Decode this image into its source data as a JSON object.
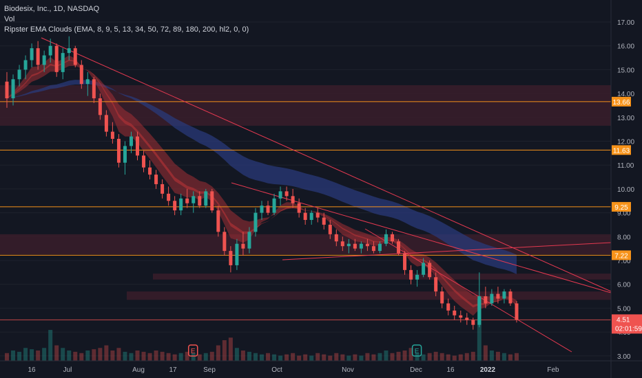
{
  "legend": {
    "title": "Biodesix, Inc., 1D, NASDAQ",
    "vol": "Vol",
    "indicator": "Ripster EMA Clouds (EMA, 8, 9, 5, 13, 34, 50, 72, 89, 180, 200, hl2, 0, 0)"
  },
  "colors": {
    "background": "#131722",
    "up": "#26a69a",
    "down": "#ef5350",
    "level_line": "#f7931a",
    "trend_line": "#e53950",
    "zone": "#3a1d2a",
    "cloud_fast": "#a33035",
    "cloud_slow": "#2a3a7a"
  },
  "chart_data": {
    "type": "candlestick",
    "y_axis": {
      "ticks": [
        "17.00",
        "16.00",
        "15.00",
        "14.00",
        "13.00",
        "12.00",
        "11.00",
        "10.00",
        "9.00",
        "8.00",
        "7.00",
        "6.00",
        "5.00",
        "4.00",
        "3.00"
      ],
      "range": [
        2.8,
        17.6
      ]
    },
    "x_axis": {
      "ticks": [
        {
          "label": "16",
          "bold": false
        },
        {
          "label": "Jul",
          "bold": false
        },
        {
          "label": "Aug",
          "bold": false
        },
        {
          "label": "17",
          "bold": false
        },
        {
          "label": "Sep",
          "bold": false
        },
        {
          "label": "Oct",
          "bold": false
        },
        {
          "label": "Nov",
          "bold": false
        },
        {
          "label": "Dec",
          "bold": false
        },
        {
          "label": "16",
          "bold": false
        },
        {
          "label": "2022",
          "bold": true
        },
        {
          "label": "Feb",
          "bold": false
        }
      ]
    },
    "horizontal_levels": [
      {
        "value": 13.66,
        "label": "13.66"
      },
      {
        "value": 11.63,
        "label": "11.63"
      },
      {
        "value": 9.25,
        "label": "9.25"
      },
      {
        "value": 7.22,
        "label": "7.22"
      }
    ],
    "zones": [
      {
        "from": 12.65,
        "to": 14.35
      },
      {
        "from": 7.25,
        "to": 8.1
      },
      {
        "from": 6.2,
        "to": 6.45
      },
      {
        "from": 5.35,
        "to": 5.7
      }
    ],
    "last_price": {
      "value": 4.51,
      "label": "4.51",
      "countdown": "02:01:59"
    },
    "support_line_value": 4.51,
    "candles": [
      [
        14.5,
        14.9,
        13.4,
        13.8
      ],
      [
        13.8,
        14.8,
        13.5,
        14.6
      ],
      [
        14.6,
        15.2,
        14.3,
        15.0
      ],
      [
        15.0,
        15.6,
        14.6,
        15.4
      ],
      [
        15.4,
        16.1,
        15.1,
        15.9
      ],
      [
        15.9,
        16.2,
        15.0,
        15.2
      ],
      [
        15.2,
        15.8,
        14.9,
        15.6
      ],
      [
        15.6,
        16.3,
        15.3,
        16.0
      ],
      [
        16.0,
        16.1,
        14.7,
        14.9
      ],
      [
        14.9,
        15.9,
        14.6,
        15.7
      ],
      [
        15.7,
        16.4,
        15.4,
        15.9
      ],
      [
        15.9,
        16.0,
        15.1,
        15.2
      ],
      [
        15.2,
        15.4,
        14.2,
        14.4
      ],
      [
        14.4,
        14.9,
        13.9,
        14.6
      ],
      [
        14.6,
        14.7,
        13.6,
        13.8
      ],
      [
        13.8,
        14.0,
        12.9,
        13.1
      ],
      [
        13.1,
        13.3,
        12.2,
        12.4
      ],
      [
        12.4,
        12.8,
        11.9,
        12.1
      ],
      [
        12.1,
        12.3,
        10.9,
        11.1
      ],
      [
        11.1,
        12.0,
        10.6,
        11.8
      ],
      [
        11.8,
        12.4,
        11.5,
        12.2
      ],
      [
        12.2,
        12.4,
        11.2,
        11.4
      ],
      [
        11.4,
        11.6,
        10.7,
        10.9
      ],
      [
        10.9,
        11.2,
        10.4,
        10.6
      ],
      [
        10.6,
        10.8,
        10.0,
        10.2
      ],
      [
        10.2,
        10.4,
        9.6,
        9.8
      ],
      [
        9.8,
        10.1,
        9.3,
        9.5
      ],
      [
        9.5,
        9.7,
        8.9,
        9.1
      ],
      [
        9.1,
        9.8,
        8.9,
        9.6
      ],
      [
        9.6,
        10.0,
        9.2,
        9.4
      ],
      [
        9.4,
        9.9,
        9.0,
        9.7
      ],
      [
        9.7,
        9.9,
        9.2,
        9.3
      ],
      [
        9.3,
        10.0,
        9.2,
        9.9
      ],
      [
        9.9,
        10.0,
        9.0,
        9.1
      ],
      [
        9.1,
        9.3,
        8.0,
        8.2
      ],
      [
        8.2,
        8.4,
        7.2,
        7.4
      ],
      [
        7.4,
        7.6,
        6.5,
        6.8
      ],
      [
        6.8,
        7.9,
        6.6,
        7.7
      ],
      [
        7.7,
        8.2,
        7.2,
        7.5
      ],
      [
        7.5,
        8.4,
        7.3,
        8.2
      ],
      [
        8.2,
        9.2,
        8.0,
        9.0
      ],
      [
        9.0,
        9.5,
        8.7,
        9.3
      ],
      [
        9.3,
        9.5,
        8.9,
        9.0
      ],
      [
        9.0,
        9.8,
        8.9,
        9.6
      ],
      [
        9.6,
        10.1,
        9.3,
        9.9
      ],
      [
        9.9,
        10.1,
        9.5,
        9.7
      ],
      [
        9.7,
        10.0,
        9.2,
        9.4
      ],
      [
        9.4,
        9.6,
        8.8,
        9.0
      ],
      [
        9.0,
        9.2,
        8.5,
        8.7
      ],
      [
        8.7,
        9.1,
        8.5,
        9.0
      ],
      [
        9.0,
        9.2,
        8.6,
        8.8
      ],
      [
        8.8,
        9.0,
        8.3,
        8.5
      ],
      [
        8.5,
        8.7,
        7.9,
        8.1
      ],
      [
        8.1,
        8.3,
        7.6,
        7.8
      ],
      [
        7.8,
        8.0,
        7.4,
        7.6
      ],
      [
        7.6,
        7.9,
        7.3,
        7.7
      ],
      [
        7.7,
        7.9,
        7.4,
        7.5
      ],
      [
        7.5,
        7.8,
        7.3,
        7.7
      ],
      [
        7.7,
        7.9,
        7.4,
        7.6
      ],
      [
        7.6,
        7.8,
        7.3,
        7.4
      ],
      [
        7.4,
        7.8,
        7.3,
        7.7
      ],
      [
        7.7,
        8.3,
        7.6,
        8.1
      ],
      [
        8.1,
        8.2,
        7.7,
        7.8
      ],
      [
        7.8,
        7.9,
        7.2,
        7.3
      ],
      [
        7.3,
        7.4,
        6.4,
        6.6
      ],
      [
        6.6,
        6.8,
        6.0,
        6.2
      ],
      [
        6.2,
        6.6,
        5.9,
        6.4
      ],
      [
        6.4,
        7.1,
        6.3,
        6.9
      ],
      [
        6.9,
        7.0,
        6.2,
        6.3
      ],
      [
        6.3,
        6.5,
        5.5,
        5.7
      ],
      [
        5.7,
        5.9,
        5.0,
        5.2
      ],
      [
        5.2,
        5.4,
        4.7,
        4.9
      ],
      [
        4.9,
        5.1,
        4.5,
        4.7
      ],
      [
        4.7,
        4.9,
        4.4,
        4.6
      ],
      [
        4.6,
        4.8,
        4.3,
        4.5
      ],
      [
        4.5,
        4.6,
        4.1,
        4.3
      ],
      [
        4.3,
        6.5,
        4.2,
        5.5
      ],
      [
        5.5,
        5.9,
        5.0,
        5.2
      ],
      [
        5.2,
        5.8,
        5.1,
        5.6
      ],
      [
        5.6,
        5.9,
        5.2,
        5.4
      ],
      [
        5.4,
        5.8,
        5.2,
        5.7
      ],
      [
        5.7,
        5.8,
        5.1,
        5.2
      ],
      [
        5.2,
        5.3,
        4.4,
        4.51
      ]
    ],
    "volume": [
      0.3,
      0.4,
      0.35,
      0.5,
      0.45,
      0.4,
      0.5,
      1.2,
      0.6,
      0.5,
      0.4,
      0.35,
      0.3,
      0.4,
      0.45,
      0.5,
      0.6,
      0.4,
      0.5,
      0.35,
      0.3,
      0.4,
      0.35,
      0.3,
      0.4,
      0.35,
      0.3,
      0.25,
      0.3,
      0.35,
      0.3,
      0.25,
      0.3,
      0.35,
      0.6,
      0.8,
      0.9,
      0.5,
      0.4,
      0.35,
      0.3,
      0.25,
      0.3,
      0.25,
      0.2,
      0.25,
      0.3,
      0.2,
      0.25,
      0.2,
      0.3,
      0.25,
      0.2,
      0.3,
      0.25,
      0.2,
      0.25,
      0.2,
      0.3,
      0.25,
      0.3,
      0.4,
      0.3,
      0.35,
      0.4,
      0.5,
      0.3,
      0.25,
      0.3,
      0.35,
      0.3,
      0.25,
      0.2,
      0.25,
      0.3,
      0.35,
      2.4,
      0.6,
      0.4,
      0.35,
      0.3,
      0.25,
      0.3
    ],
    "earnings_markers": [
      {
        "index": 30,
        "label": "E",
        "color": "#ef5350"
      },
      {
        "index": 66,
        "label": "E",
        "color": "#26a69a"
      }
    ]
  }
}
